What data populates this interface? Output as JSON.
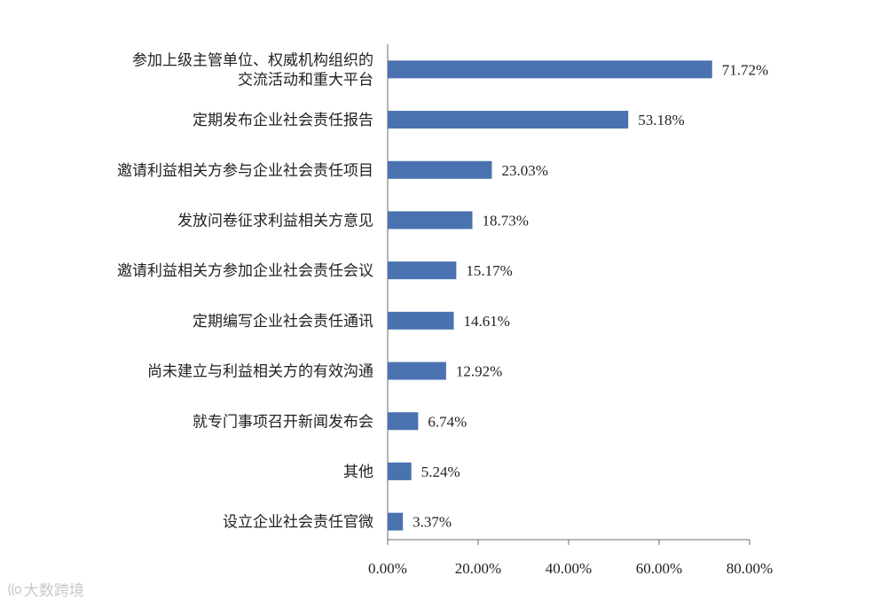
{
  "chart_data": {
    "type": "bar",
    "orientation": "horizontal",
    "categories": [
      [
        "参加上级主管单位、权威机构组织的",
        "交流活动和重大平台"
      ],
      [
        "定期发布企业社会责任报告"
      ],
      [
        "邀请利益相关方参与企业社会责任项目"
      ],
      [
        "发放问卷征求利益相关方意见"
      ],
      [
        "邀请利益相关方参加企业社会责任会议"
      ],
      [
        "定期编写企业社会责任通讯"
      ],
      [
        "尚未建立与利益相关方的有效沟通"
      ],
      [
        "就专门事项召开新闻发布会"
      ],
      [
        "其他"
      ],
      [
        "设立企业社会责任官微"
      ]
    ],
    "values": [
      71.72,
      53.18,
      23.03,
      18.73,
      15.17,
      14.61,
      12.92,
      6.74,
      5.24,
      3.37
    ],
    "value_labels": [
      "71.72%",
      "53.18%",
      "23.03%",
      "18.73%",
      "15.17%",
      "14.61%",
      "12.92%",
      "6.74%",
      "5.24%",
      "3.37%"
    ],
    "xlim": [
      0,
      80
    ],
    "xticks": [
      0,
      20,
      40,
      60,
      80
    ],
    "xtick_labels": [
      "0.00%",
      "20.00%",
      "40.00%",
      "60.00%",
      "80.00%"
    ],
    "bar_color": "#4a72b0",
    "grid": false,
    "legend": "none"
  },
  "watermark": {
    "logo_text": "((o",
    "text": "大数跨境"
  }
}
